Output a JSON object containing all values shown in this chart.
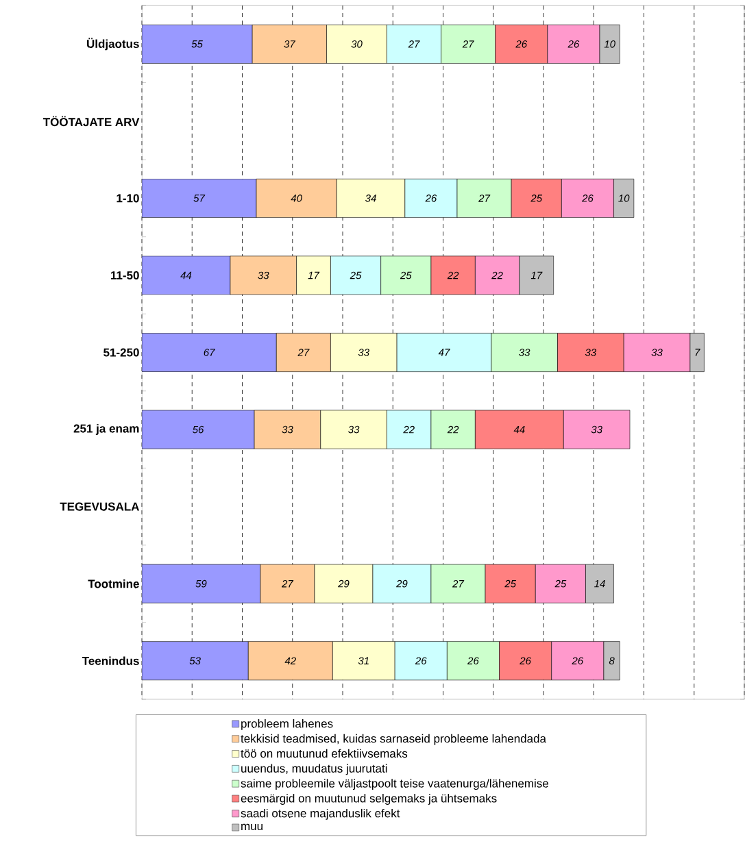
{
  "chart_data": {
    "type": "bar",
    "orientation": "horizontal",
    "stacked": true,
    "categories": [
      "Üldjaotus",
      "TÖÖTAJATE ARV",
      "1-10",
      "11-50",
      "51-250",
      "251 ja enam",
      "TEGEVUSALA",
      "Tootmine",
      "Teenindus"
    ],
    "series": [
      {
        "name": "probleem lahenes",
        "color": "#9999ff",
        "values": [
          55,
          null,
          57,
          44,
          67,
          56,
          null,
          59,
          53
        ]
      },
      {
        "name": "tekkisid teadmised, kuidas sarnaseid probleeme lahendada",
        "color": "#ffcc99",
        "values": [
          37,
          null,
          40,
          33,
          27,
          33,
          null,
          27,
          42
        ]
      },
      {
        "name": "töö  on muutunud efektiivsemaks",
        "color": "#ffffcc",
        "values": [
          30,
          null,
          34,
          17,
          33,
          33,
          null,
          29,
          31
        ]
      },
      {
        "name": "uuendus, muudatus juurutati",
        "color": "#ccffff",
        "values": [
          27,
          null,
          26,
          25,
          47,
          22,
          null,
          29,
          26
        ]
      },
      {
        "name": "saime probleemile väljastpoolt teise vaatenurga/lähenemise",
        "color": "#ccffcc",
        "values": [
          27,
          null,
          27,
          25,
          33,
          22,
          null,
          27,
          26
        ]
      },
      {
        "name": "eesmärgid  on muutunud selgemaks ja ühtsemaks",
        "color": "#ff8080",
        "values": [
          26,
          null,
          25,
          22,
          33,
          44,
          null,
          25,
          26
        ]
      },
      {
        "name": "saadi otsene majanduslik efekt",
        "color": "#ff99cc",
        "values": [
          26,
          null,
          26,
          22,
          33,
          33,
          null,
          25,
          26
        ]
      },
      {
        "name": "muu",
        "color": "#c0c0c0",
        "values": [
          10,
          null,
          10,
          17,
          7,
          null,
          null,
          14,
          8
        ]
      }
    ],
    "xlim": [
      0,
      300
    ],
    "xticks": [
      {
        "value": 0,
        "label": null
      },
      {
        "value": 25,
        "label": null
      },
      {
        "value": 50,
        "label": null
      },
      {
        "value": 75,
        "label": null
      },
      {
        "value": 100,
        "label": null
      },
      {
        "value": 125,
        "label": null
      },
      {
        "value": 150,
        "label": null
      },
      {
        "value": 175,
        "label": null
      },
      {
        "value": 200,
        "label": null
      },
      {
        "value": 225,
        "label": null
      },
      {
        "value": 250,
        "label": null
      },
      {
        "value": 275,
        "label": null
      },
      {
        "value": 300,
        "label": null
      }
    ],
    "tick_labels": "y",
    "grid": "x",
    "legend": "bottom",
    "data_labels": true
  }
}
